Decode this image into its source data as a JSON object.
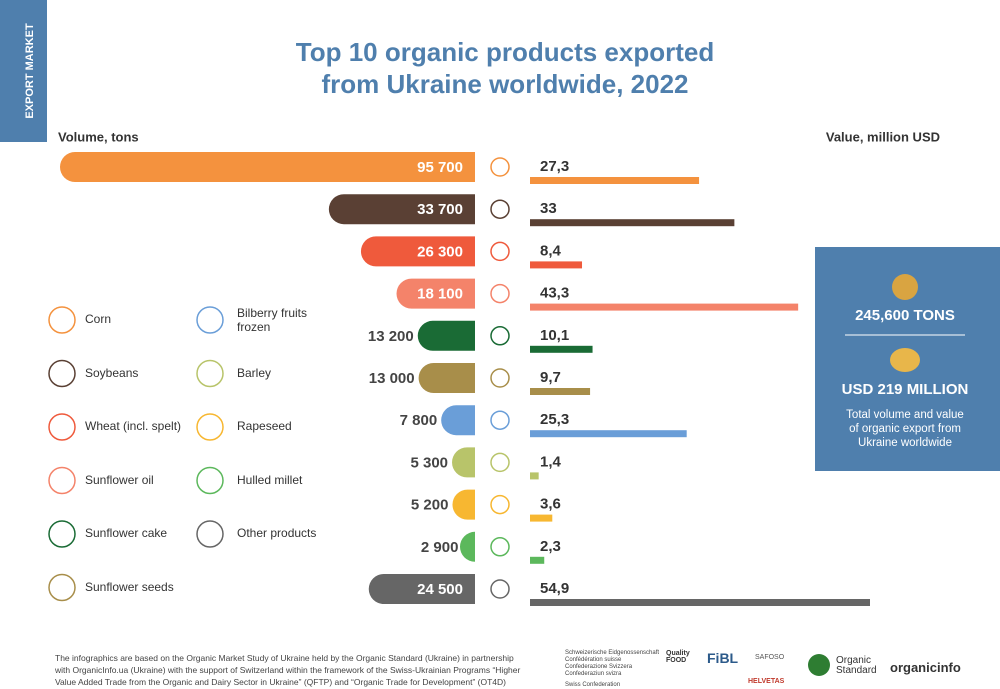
{
  "chart_data": {
    "type": "butterfly-bar",
    "title": "Top 10 organic products exported\nfrom Ukraine worldwide, 2022",
    "categories": [
      "Corn",
      "Soybeans",
      "Wheat (incl. spelt)",
      "Sunflower oil",
      "Sunflower cake",
      "Sunflower seeds",
      "Bilberry fruits frozen",
      "Barley",
      "Rapeseed",
      "Hulled millet",
      "Other products"
    ],
    "colors": [
      "#f4923e",
      "#5a4034",
      "#ef5a3c",
      "#f4836a",
      "#1a6b35",
      "#a88e4a",
      "#6a9ed8",
      "#b8c46a",
      "#f7b731",
      "#5cb85c",
      "#666666"
    ],
    "series": [
      {
        "name": "Volume, tons",
        "values": [
          95700,
          33700,
          26300,
          18100,
          13200,
          13000,
          7800,
          5300,
          5200,
          2900,
          24500
        ],
        "value_labels": [
          "95 700",
          "33 700",
          "26 300",
          "18 100",
          "13 200",
          "13 000",
          "7 800",
          "5 300",
          "5 200",
          "2 900",
          "24 500"
        ]
      },
      {
        "name": "Value, million USD",
        "values": [
          27.3,
          33,
          8.4,
          43.3,
          10.1,
          9.7,
          25.3,
          1.4,
          3.6,
          2.3,
          54.9
        ],
        "value_labels": [
          "27,3",
          "33",
          "8,4",
          "43,3",
          "10,1",
          "9,7",
          "25,3",
          "1,4",
          "3,6",
          "2,3",
          "54,9"
        ]
      }
    ]
  },
  "side_tab": "EXPORT MARKET",
  "panel": {
    "tons": "245,600 TONS",
    "usd": "USD 219 MILLION",
    "note": "Total volume and value of organic export from Ukraine worldwide"
  },
  "footer": "The infographics are based on the Organic Market Study of Ukraine held by the Organic Standard (Ukraine) in partnership with OrganicInfo.ua (Ukraine) with the support of Switzerland within the framework of the Swiss-Ukrainian Programs “Higher Value Added Trade from the Organic and Dairy Sector in Ukraine” (QFTP) and “Organic Trade for Development” (OT4D)",
  "logos": [
    "Schweizerische Eidgenossenschaft Confédération suisse Confederazione Svizzera Confederaziun svizra",
    "Swiss Confederation",
    "Quality FOOD",
    "FiBL",
    "SAFOSO",
    "HELVETAS",
    "Organic Standard",
    "organicinfo"
  ]
}
